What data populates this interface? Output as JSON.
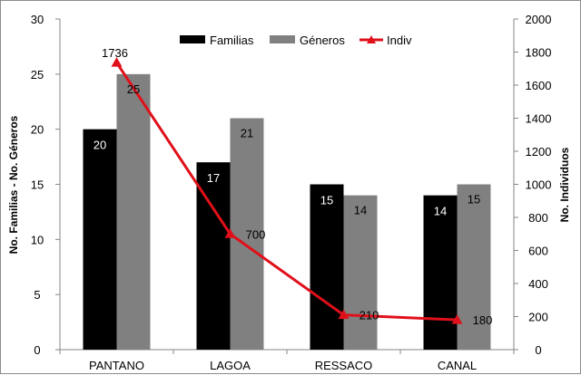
{
  "chart_data": {
    "type": "bar",
    "categories": [
      "PANTANO",
      "LAGOA",
      "RESSACO",
      "CANAL"
    ],
    "series": [
      {
        "name": "Familias",
        "axis": "left",
        "kind": "bar",
        "color": "#000000",
        "values": [
          20,
          17,
          15,
          14
        ]
      },
      {
        "name": "Géneros",
        "axis": "left",
        "kind": "bar",
        "color": "#808080",
        "values": [
          25,
          21,
          14,
          15
        ]
      },
      {
        "name": "Indiv",
        "axis": "right",
        "kind": "line",
        "color": "#e0101a",
        "marker": "triangle",
        "values": [
          1736,
          700,
          210,
          180
        ]
      }
    ],
    "ylabel": "No. Familias - No. Géneros",
    "ylabel_right": "No. Individuos",
    "ylim": [
      0,
      30
    ],
    "ylim_right": [
      0,
      2000
    ],
    "yticks": [
      "0",
      "5",
      "10",
      "15",
      "20",
      "25",
      "30"
    ],
    "yticks_right": [
      "0",
      "200",
      "400",
      "600",
      "800",
      "1000",
      "1200",
      "1400",
      "1600",
      "1800",
      "2000"
    ],
    "grid": false,
    "legend": "top-center"
  }
}
